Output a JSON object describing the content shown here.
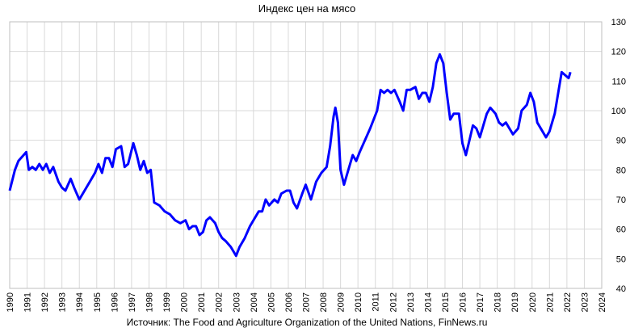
{
  "chart_data": {
    "type": "line",
    "title": "Индекс цен на мясо",
    "source": "Источник: The Food and Agriculture Organization of the United Nations, FinNews.ru",
    "x": [
      1990.0,
      1990.3,
      1990.5,
      1990.8,
      1990.95,
      1991.1,
      1991.3,
      1991.5,
      1991.7,
      1991.9,
      1992.1,
      1992.3,
      1992.5,
      1992.8,
      1993.0,
      1993.2,
      1993.5,
      1993.7,
      1994.0,
      1994.3,
      1994.6,
      1994.9,
      1995.1,
      1995.3,
      1995.5,
      1995.7,
      1995.9,
      1996.1,
      1996.4,
      1996.6,
      1996.8,
      1997.1,
      1997.3,
      1997.5,
      1997.7,
      1997.9,
      1998.1,
      1998.3,
      1998.6,
      1998.9,
      1999.2,
      1999.5,
      1999.8,
      2000.1,
      2000.3,
      2000.5,
      2000.7,
      2000.9,
      2001.1,
      2001.3,
      2001.5,
      2001.8,
      2002.0,
      2002.2,
      2002.4,
      2002.7,
      2002.9,
      2003.0,
      2003.2,
      2003.5,
      2003.8,
      2004.1,
      2004.3,
      2004.5,
      2004.7,
      2004.9,
      2005.2,
      2005.4,
      2005.6,
      2005.9,
      2006.1,
      2006.3,
      2006.5,
      2006.8,
      2007.0,
      2007.3,
      2007.6,
      2007.9,
      2008.2,
      2008.4,
      2008.6,
      2008.7,
      2008.85,
      2009.0,
      2009.2,
      2009.4,
      2009.7,
      2009.9,
      2010.1,
      2010.4,
      2010.7,
      2010.9,
      2011.1,
      2011.3,
      2011.5,
      2011.7,
      2011.9,
      2012.1,
      2012.4,
      2012.6,
      2012.8,
      2013.0,
      2013.3,
      2013.5,
      2013.7,
      2013.9,
      2014.1,
      2014.3,
      2014.5,
      2014.7,
      2014.9,
      2015.1,
      2015.3,
      2015.5,
      2015.8,
      2016.0,
      2016.2,
      2016.4,
      2016.6,
      2016.8,
      2017.0,
      2017.2,
      2017.4,
      2017.6,
      2017.9,
      2018.1,
      2018.3,
      2018.5,
      2018.7,
      2018.9,
      2019.2,
      2019.4,
      2019.7,
      2019.9,
      2020.1,
      2020.3,
      2020.6,
      2020.8,
      2021.0,
      2021.3,
      2021.5,
      2021.7,
      2021.9,
      2022.1,
      2022.2
    ],
    "series": [
      {
        "color": "#0000ff",
        "values": [
          73,
          80,
          83,
          85,
          86,
          80,
          81,
          80,
          82,
          80,
          82,
          79,
          81,
          76,
          74,
          73,
          77,
          74,
          70,
          73,
          76,
          79,
          82,
          79,
          84,
          84,
          81,
          87,
          88,
          81,
          82,
          89,
          85,
          80,
          83,
          79,
          80,
          69,
          68,
          66,
          65,
          63,
          62,
          63,
          60,
          61,
          61,
          58,
          59,
          63,
          64,
          62,
          59,
          57,
          56,
          54,
          52,
          51,
          54,
          57,
          61,
          64,
          66,
          66,
          70,
          68,
          70,
          69,
          72,
          73,
          73,
          69,
          67,
          72,
          75,
          70,
          76,
          79,
          81,
          88,
          98,
          101,
          96,
          80,
          75,
          79,
          85,
          83,
          86,
          90,
          94,
          97,
          100,
          107,
          106,
          107,
          106,
          107,
          103,
          100,
          107,
          107,
          108,
          104,
          106,
          106,
          103,
          108,
          116,
          119,
          116,
          106,
          97,
          99,
          99,
          89,
          85,
          90,
          95,
          94,
          91,
          95,
          99,
          101,
          99,
          96,
          95,
          96,
          94,
          92,
          94,
          100,
          102,
          106,
          103,
          96,
          93,
          91,
          93,
          99,
          106,
          113,
          112,
          111,
          113
        ]
      }
    ],
    "xlim": [
      1990,
      2024
    ],
    "xticks": [
      1990,
      1991,
      1992,
      1993,
      1994,
      1995,
      1996,
      1997,
      1998,
      1999,
      2000,
      2001,
      2002,
      2003,
      2004,
      2005,
      2006,
      2007,
      2008,
      2009,
      2010,
      2011,
      2012,
      2013,
      2014,
      2015,
      2016,
      2017,
      2018,
      2019,
      2020,
      2021,
      2022,
      2023,
      2024
    ],
    "ylim": [
      40,
      130
    ],
    "yticks": [
      40,
      50,
      60,
      70,
      80,
      90,
      100,
      110,
      120,
      130
    ],
    "grid": true
  }
}
